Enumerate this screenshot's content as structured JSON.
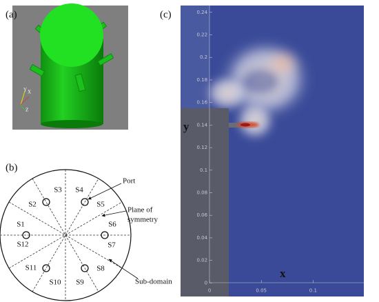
{
  "panels": {
    "a": {
      "label": "(a)",
      "axes": [
        "Y",
        "X",
        "Z"
      ]
    },
    "b": {
      "label": "(b)",
      "sectors": [
        "S1",
        "S2",
        "S3",
        "S4",
        "S5",
        "S6",
        "S7",
        "S8",
        "S9",
        "S10",
        "S11",
        "S12"
      ],
      "port": "Port",
      "plane": [
        "Plane of",
        "symmetry"
      ],
      "subdomain": "Sub-domain"
    },
    "c": {
      "label": "(c)",
      "xlabel": "x",
      "ylabel": "y",
      "xlim": [
        -0.028,
        0.149
      ],
      "ylim": [
        -0.012,
        0.246
      ],
      "xticks": [
        0,
        0.05,
        0.1
      ],
      "yticks": [
        0,
        0.02,
        0.04,
        0.06,
        0.08,
        0.1,
        0.12,
        0.14,
        0.16,
        0.18,
        0.2,
        0.22,
        0.24
      ]
    }
  }
}
